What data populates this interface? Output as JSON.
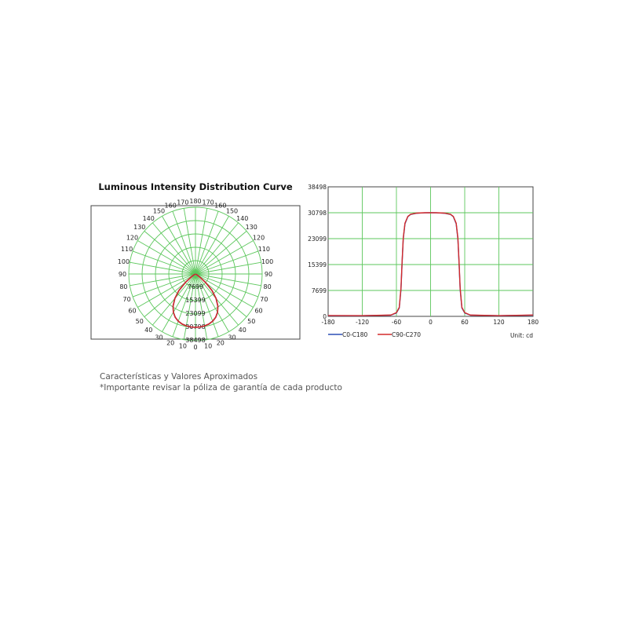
{
  "chart_data": [
    {
      "type": "polar",
      "title": "Luminous Intensity Distribution Curve",
      "angle_labels_left": [
        "0",
        "10",
        "20",
        "30",
        "40",
        "50",
        "60",
        "70",
        "80",
        "90",
        "100",
        "110",
        "120",
        "130",
        "140",
        "150",
        "160",
        "170",
        "180"
      ],
      "angle_labels_right": [
        "10",
        "20",
        "30",
        "40",
        "50",
        "60",
        "70",
        "80",
        "90",
        "100",
        "110",
        "120",
        "130",
        "140",
        "150",
        "160",
        "170"
      ],
      "ring_labels": [
        "7699",
        "15399",
        "23099",
        "30798",
        "38498"
      ],
      "r_max": 38498,
      "series": [
        {
          "color": "#2b4fb5",
          "points": [
            [
              0,
              30798
            ],
            [
              5,
              30700
            ],
            [
              10,
              30400
            ],
            [
              15,
              29900
            ],
            [
              20,
              29000
            ],
            [
              25,
              27600
            ],
            [
              30,
              25500
            ],
            [
              35,
              22500
            ],
            [
              40,
              18500
            ],
            [
              45,
              13500
            ],
            [
              50,
              7500
            ],
            [
              55,
              2600
            ],
            [
              60,
              900
            ],
            [
              70,
              300
            ],
            [
              80,
              200
            ],
            [
              90,
              200
            ]
          ]
        },
        {
          "color": "#d42a2a",
          "points": [
            [
              0,
              30798
            ],
            [
              5,
              30700
            ],
            [
              10,
              30400
            ],
            [
              15,
              29900
            ],
            [
              20,
              29000
            ],
            [
              25,
              27600
            ],
            [
              30,
              25500
            ],
            [
              35,
              22500
            ],
            [
              40,
              18500
            ],
            [
              45,
              13500
            ],
            [
              50,
              7500
            ],
            [
              55,
              2600
            ],
            [
              60,
              900
            ],
            [
              70,
              300
            ],
            [
              80,
              200
            ],
            [
              90,
              200
            ]
          ]
        }
      ]
    },
    {
      "type": "line",
      "x_ticks": [
        "-180",
        "-120",
        "-60",
        "0",
        "60",
        "120",
        "180"
      ],
      "y_ticks": [
        "0",
        "7699",
        "15399",
        "23099",
        "30798",
        "38498"
      ],
      "xlim": [
        -180,
        180
      ],
      "ylim": [
        0,
        38498
      ],
      "grid": true,
      "unit_label": "Unit: cd",
      "series": [
        {
          "name": "C0-C180",
          "color": "#2b4fb5",
          "points": [
            [
              -180,
              200
            ],
            [
              -120,
              200
            ],
            [
              -70,
              350
            ],
            [
              -60,
              1000
            ],
            [
              -55,
              2500
            ],
            [
              -52,
              8000
            ],
            [
              -50,
              16000
            ],
            [
              -48,
              23000
            ],
            [
              -45,
              27500
            ],
            [
              -40,
              29600
            ],
            [
              -35,
              30300
            ],
            [
              -25,
              30650
            ],
            [
              -10,
              30790
            ],
            [
              0,
              30798
            ],
            [
              10,
              30790
            ],
            [
              25,
              30650
            ],
            [
              35,
              30300
            ],
            [
              40,
              29600
            ],
            [
              45,
              27500
            ],
            [
              48,
              23000
            ],
            [
              50,
              16000
            ],
            [
              52,
              8000
            ],
            [
              55,
              2500
            ],
            [
              60,
              1000
            ],
            [
              70,
              350
            ],
            [
              120,
              200
            ],
            [
              180,
              350
            ]
          ]
        },
        {
          "name": "C90-C270",
          "color": "#d42a2a",
          "points": [
            [
              -180,
              250
            ],
            [
              -120,
              220
            ],
            [
              -70,
              380
            ],
            [
              -60,
              1100
            ],
            [
              -55,
              2700
            ],
            [
              -52,
              8400
            ],
            [
              -50,
              16400
            ],
            [
              -48,
              23300
            ],
            [
              -45,
              27700
            ],
            [
              -40,
              29700
            ],
            [
              -35,
              30350
            ],
            [
              -25,
              30680
            ],
            [
              -10,
              30795
            ],
            [
              0,
              30798
            ],
            [
              10,
              30795
            ],
            [
              25,
              30680
            ],
            [
              35,
              30350
            ],
            [
              40,
              29700
            ],
            [
              45,
              27700
            ],
            [
              48,
              23300
            ],
            [
              50,
              16400
            ],
            [
              52,
              8400
            ],
            [
              55,
              2700
            ],
            [
              60,
              1100
            ],
            [
              70,
              380
            ],
            [
              120,
              220
            ],
            [
              180,
              400
            ]
          ]
        }
      ]
    }
  ],
  "notes": {
    "line1": "Características y Valores Aproximados",
    "line2": "*Importante revisar la póliza de garantía de cada producto"
  }
}
